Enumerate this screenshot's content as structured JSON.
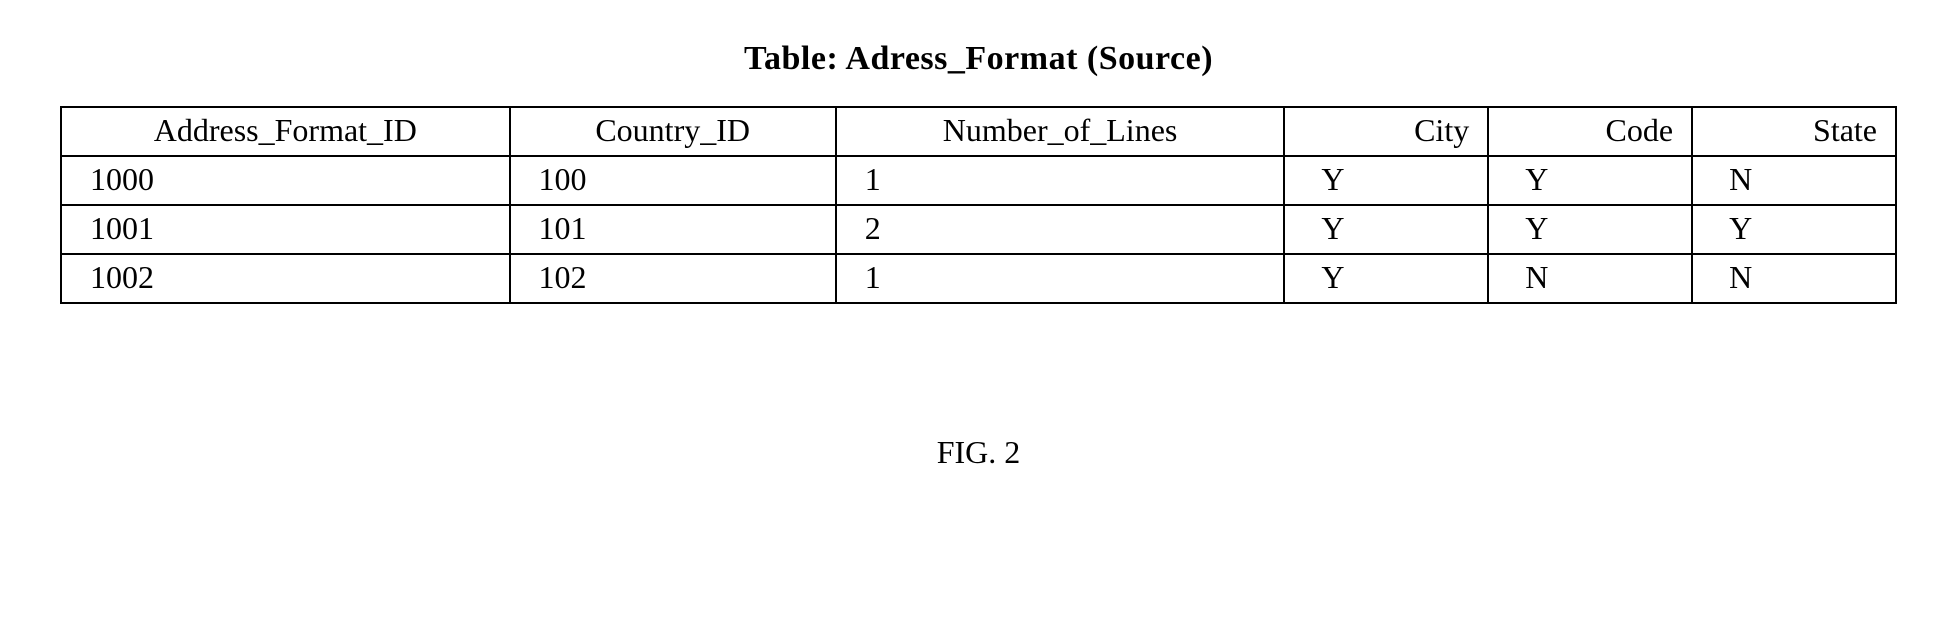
{
  "title": "Table: Adress_Format  (Source)",
  "figureLabel": "FIG. 2",
  "table": {
    "type": "table",
    "border_color": "#000000",
    "background_color": "#ffffff",
    "text_color": "#000000",
    "font_family": "Times New Roman",
    "header_fontsize": 32,
    "cell_fontsize": 32,
    "title_fontsize": 34,
    "title_fontweight": "bold",
    "columns": [
      {
        "key": "address_format_id",
        "label": "Address_Format_ID",
        "width_pct": 22,
        "align_header": "center",
        "align_cell": "left"
      },
      {
        "key": "country_id",
        "label": "Country_ID",
        "width_pct": 16,
        "align_header": "center",
        "align_cell": "left"
      },
      {
        "key": "number_of_lines",
        "label": "Number_of_Lines",
        "width_pct": 22,
        "align_header": "center",
        "align_cell": "left"
      },
      {
        "key": "city",
        "label": "City",
        "width_pct": 10,
        "align_header": "right",
        "align_cell": "left"
      },
      {
        "key": "code",
        "label": "Code",
        "width_pct": 10,
        "align_header": "right",
        "align_cell": "left"
      },
      {
        "key": "state",
        "label": "State",
        "width_pct": 10,
        "align_header": "right",
        "align_cell": "left"
      }
    ],
    "rows": [
      {
        "address_format_id": "1000",
        "country_id": "100",
        "number_of_lines": "1",
        "city": "Y",
        "code": "Y",
        "state": "N"
      },
      {
        "address_format_id": "1001",
        "country_id": "101",
        "number_of_lines": "2",
        "city": "Y",
        "code": "Y",
        "state": "Y"
      },
      {
        "address_format_id": "1002",
        "country_id": "102",
        "number_of_lines": "1",
        "city": "Y",
        "code": "N",
        "state": "N"
      }
    ]
  }
}
